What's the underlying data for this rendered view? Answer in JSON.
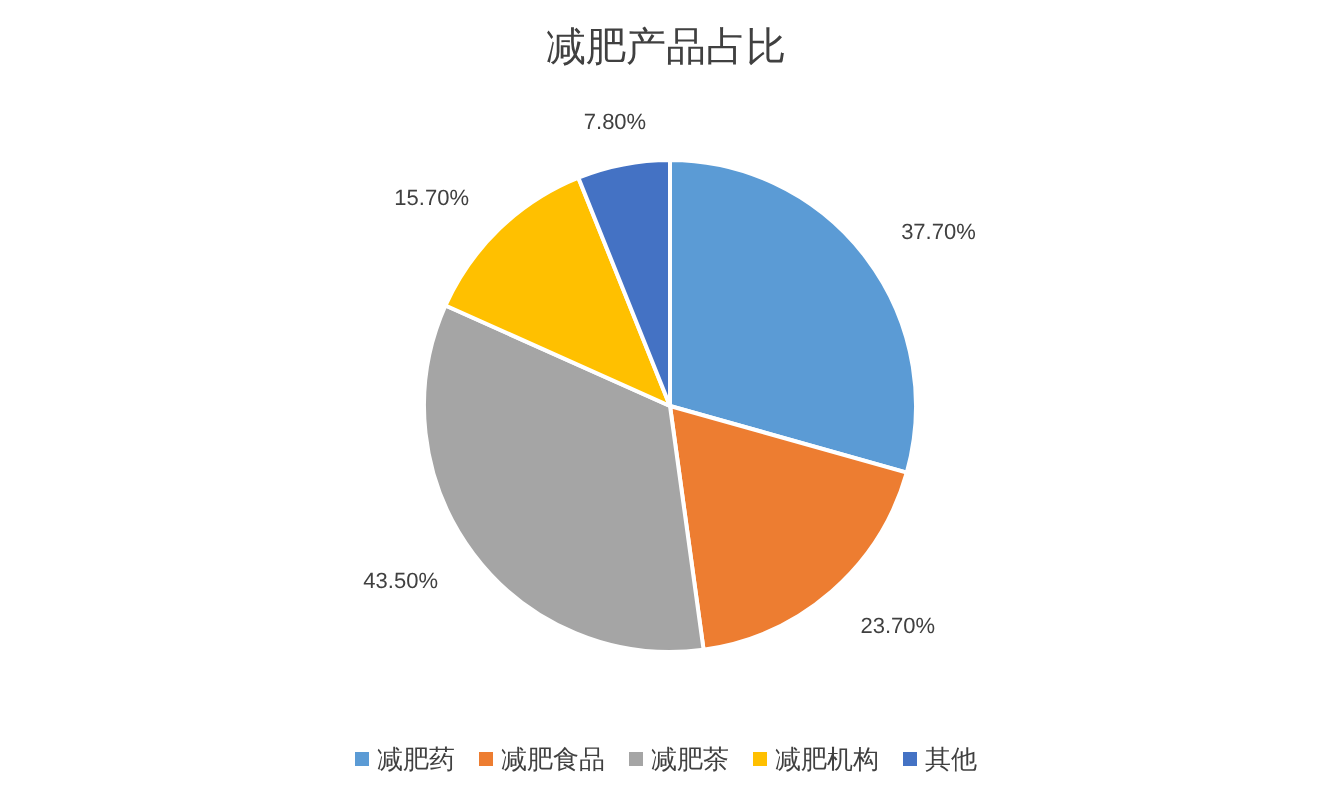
{
  "chart_data": {
    "type": "pie",
    "title": "减肥产品占比",
    "categories": [
      "减肥药",
      "减肥食品",
      "减肥茶",
      "减肥机构",
      "其他"
    ],
    "values": [
      37.7,
      23.7,
      43.5,
      15.7,
      7.8
    ],
    "colors": [
      "#5b9bd5",
      "#ed7d31",
      "#a5a5a5",
      "#ffc000",
      "#4472c4"
    ],
    "value_labels": [
      "37.70%",
      "23.70%",
      "43.50%",
      "15.70%",
      "7.80%"
    ],
    "legend": "bottom"
  }
}
